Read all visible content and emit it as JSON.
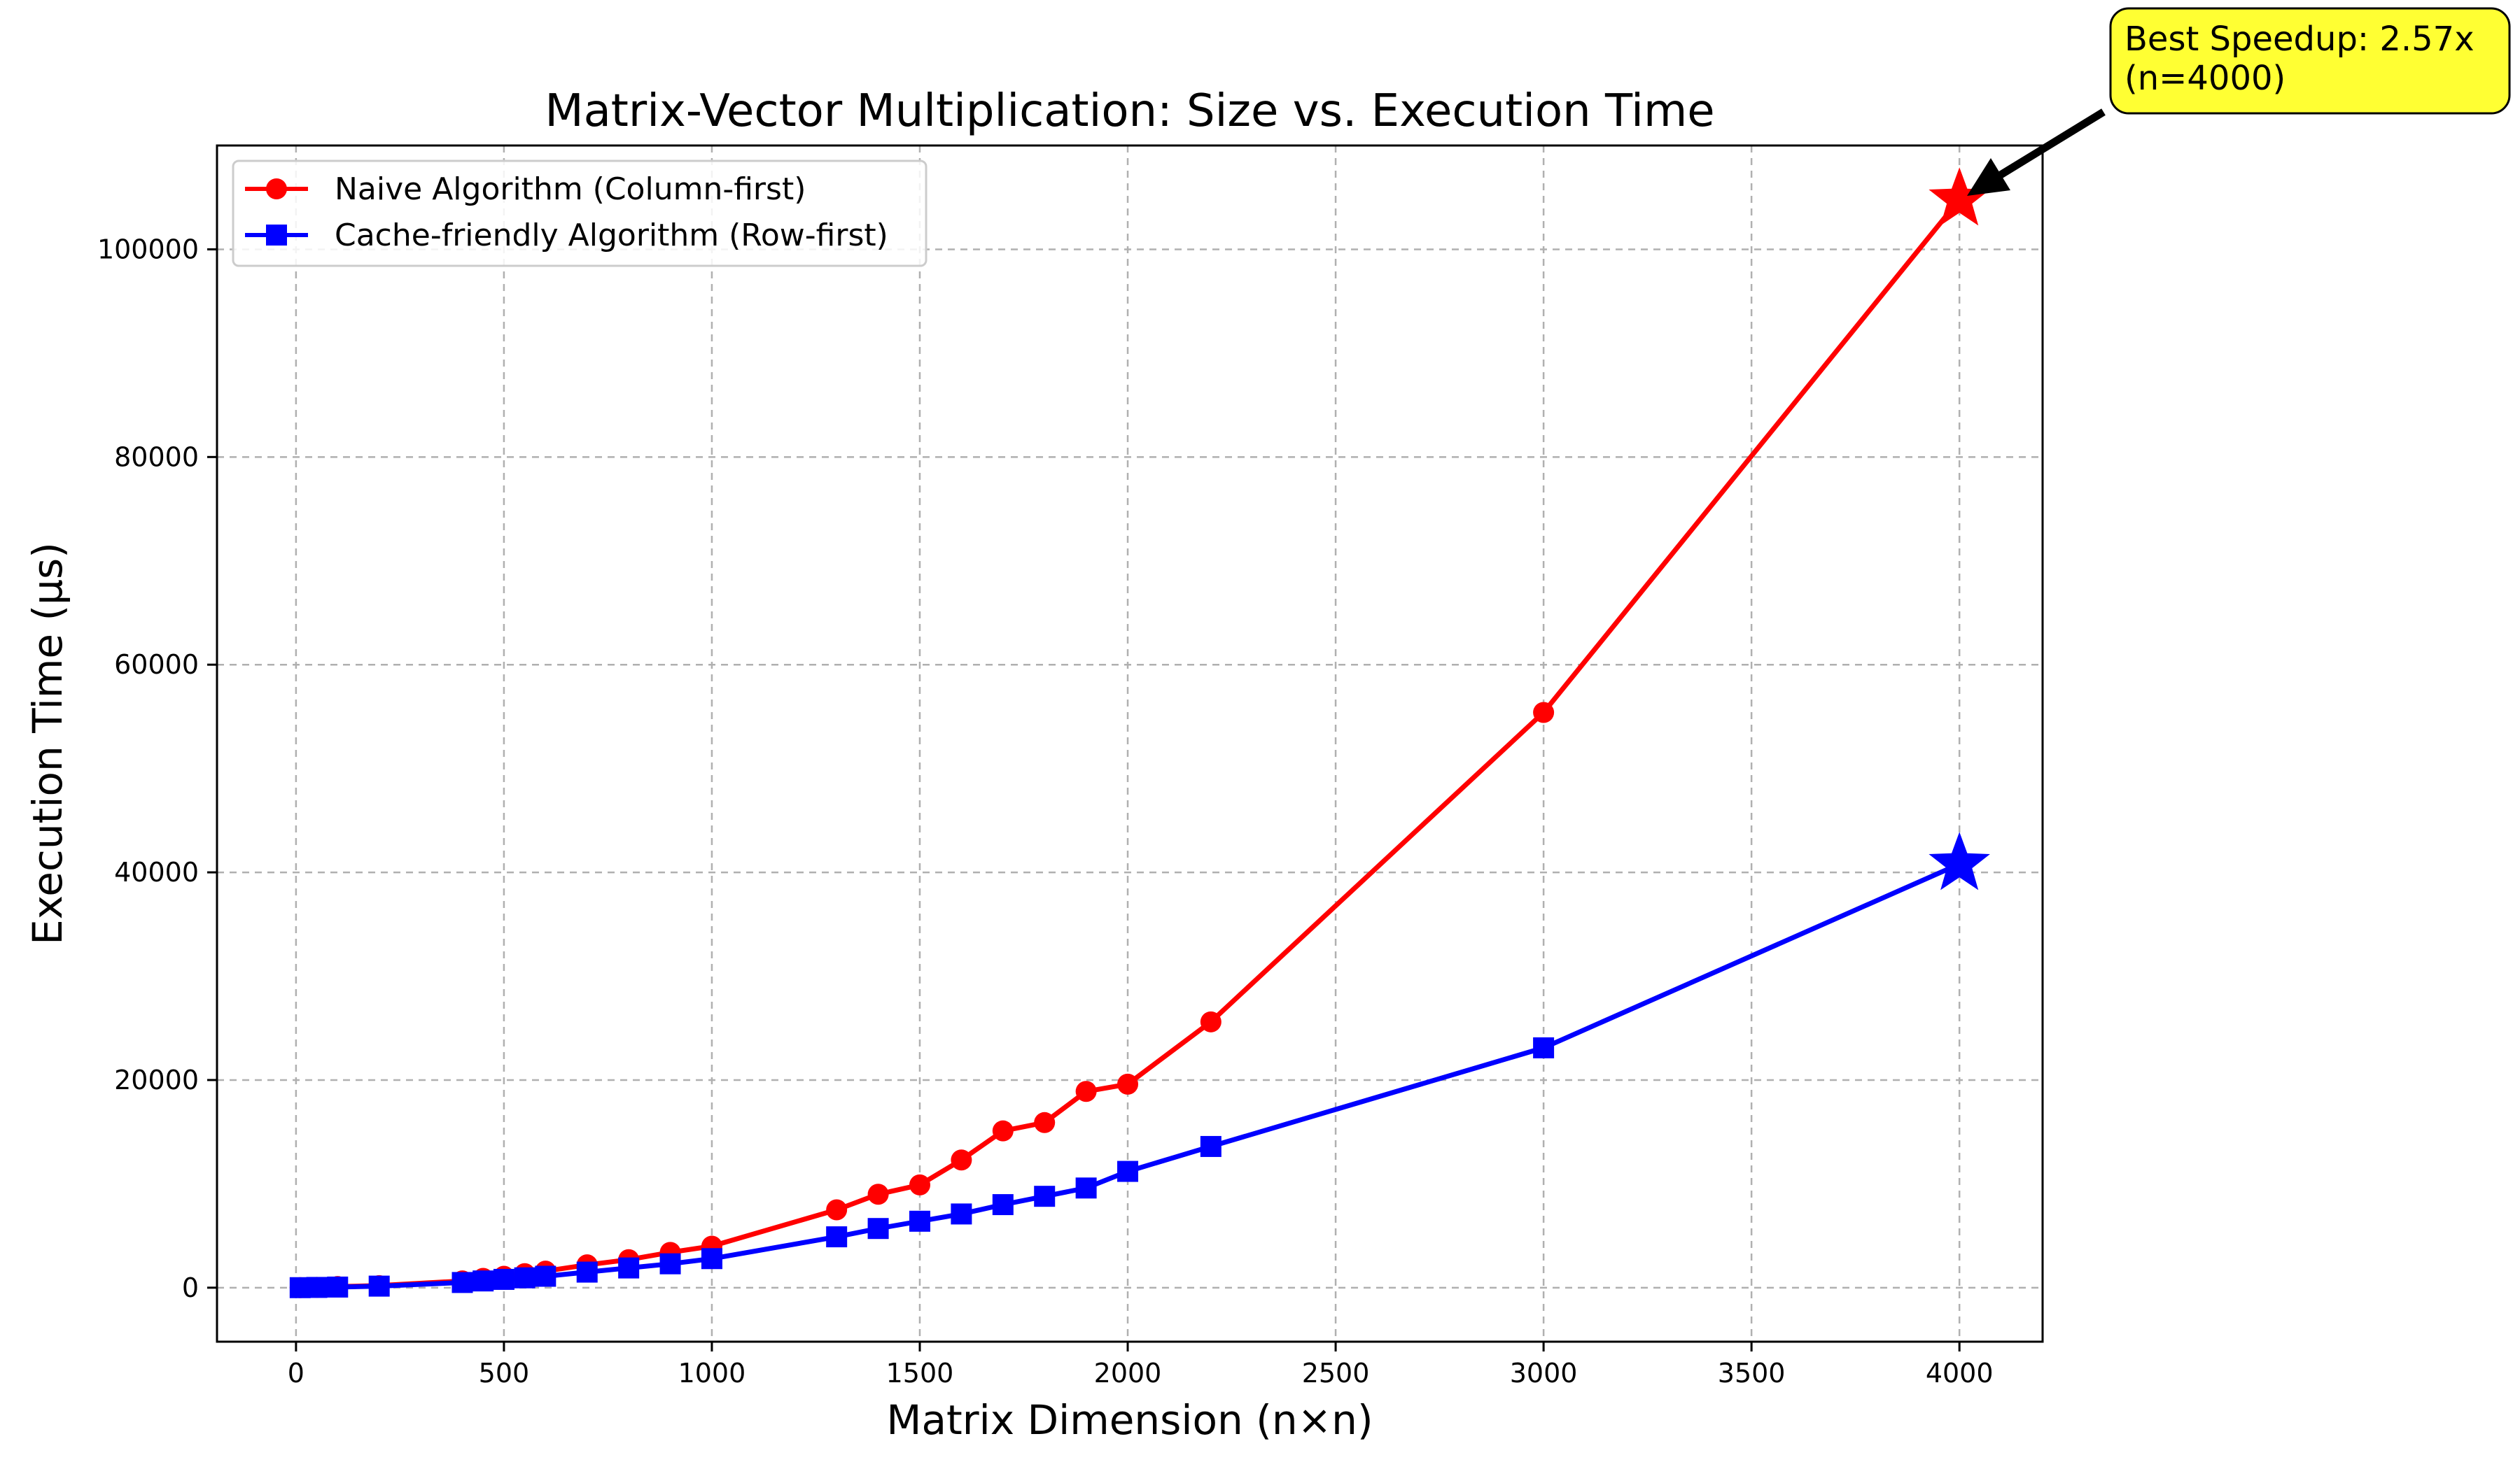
{
  "chart_data": {
    "type": "line",
    "title": "Matrix-Vector Multiplication: Size vs. Execution Time",
    "xlabel": "Matrix Dimension (n×n)",
    "ylabel": "Execution Time (μs)",
    "xlim": [
      -190,
      4200
    ],
    "ylim": [
      -5200,
      110000
    ],
    "xticks": [
      0,
      500,
      1000,
      1500,
      2000,
      2500,
      3000,
      3500,
      4000
    ],
    "yticks": [
      0,
      20000,
      40000,
      60000,
      80000,
      100000
    ],
    "grid": true,
    "legend_position": "top-left",
    "series": [
      {
        "name": "Naive Algorithm (Column-first)",
        "color": "#ff0000",
        "marker": "circle",
        "x": [
          10,
          50,
          100,
          200,
          400,
          450,
          500,
          550,
          600,
          700,
          800,
          900,
          1000,
          1300,
          1400,
          1500,
          1600,
          1700,
          1800,
          1900,
          2000,
          2200,
          3000,
          4000
        ],
        "y": [
          5,
          30,
          110,
          200,
          650,
          900,
          1100,
          1350,
          1600,
          2200,
          2700,
          3400,
          4000,
          7500,
          9000,
          9900,
          12300,
          15100,
          15900,
          18900,
          19600,
          25600,
          55400,
          104800
        ]
      },
      {
        "name": "Cache-friendly Algorithm (Row-first)",
        "color": "#0000ff",
        "marker": "square",
        "x": [
          10,
          50,
          100,
          200,
          400,
          450,
          500,
          550,
          600,
          700,
          800,
          900,
          1000,
          1300,
          1400,
          1500,
          1600,
          1700,
          1800,
          1900,
          2000,
          2200,
          3000,
          4000
        ],
        "y": [
          4,
          25,
          60,
          150,
          500,
          650,
          800,
          950,
          1100,
          1500,
          1900,
          2300,
          2800,
          4900,
          5700,
          6400,
          7100,
          8000,
          8800,
          9600,
          11200,
          13600,
          23100,
          40800
        ]
      }
    ],
    "annotation": {
      "text_line1": "Best Speedup: 2.57x",
      "text_line2": "(n=4000)",
      "x": 4000,
      "y": 104800,
      "box_color": "#ffff33"
    }
  }
}
